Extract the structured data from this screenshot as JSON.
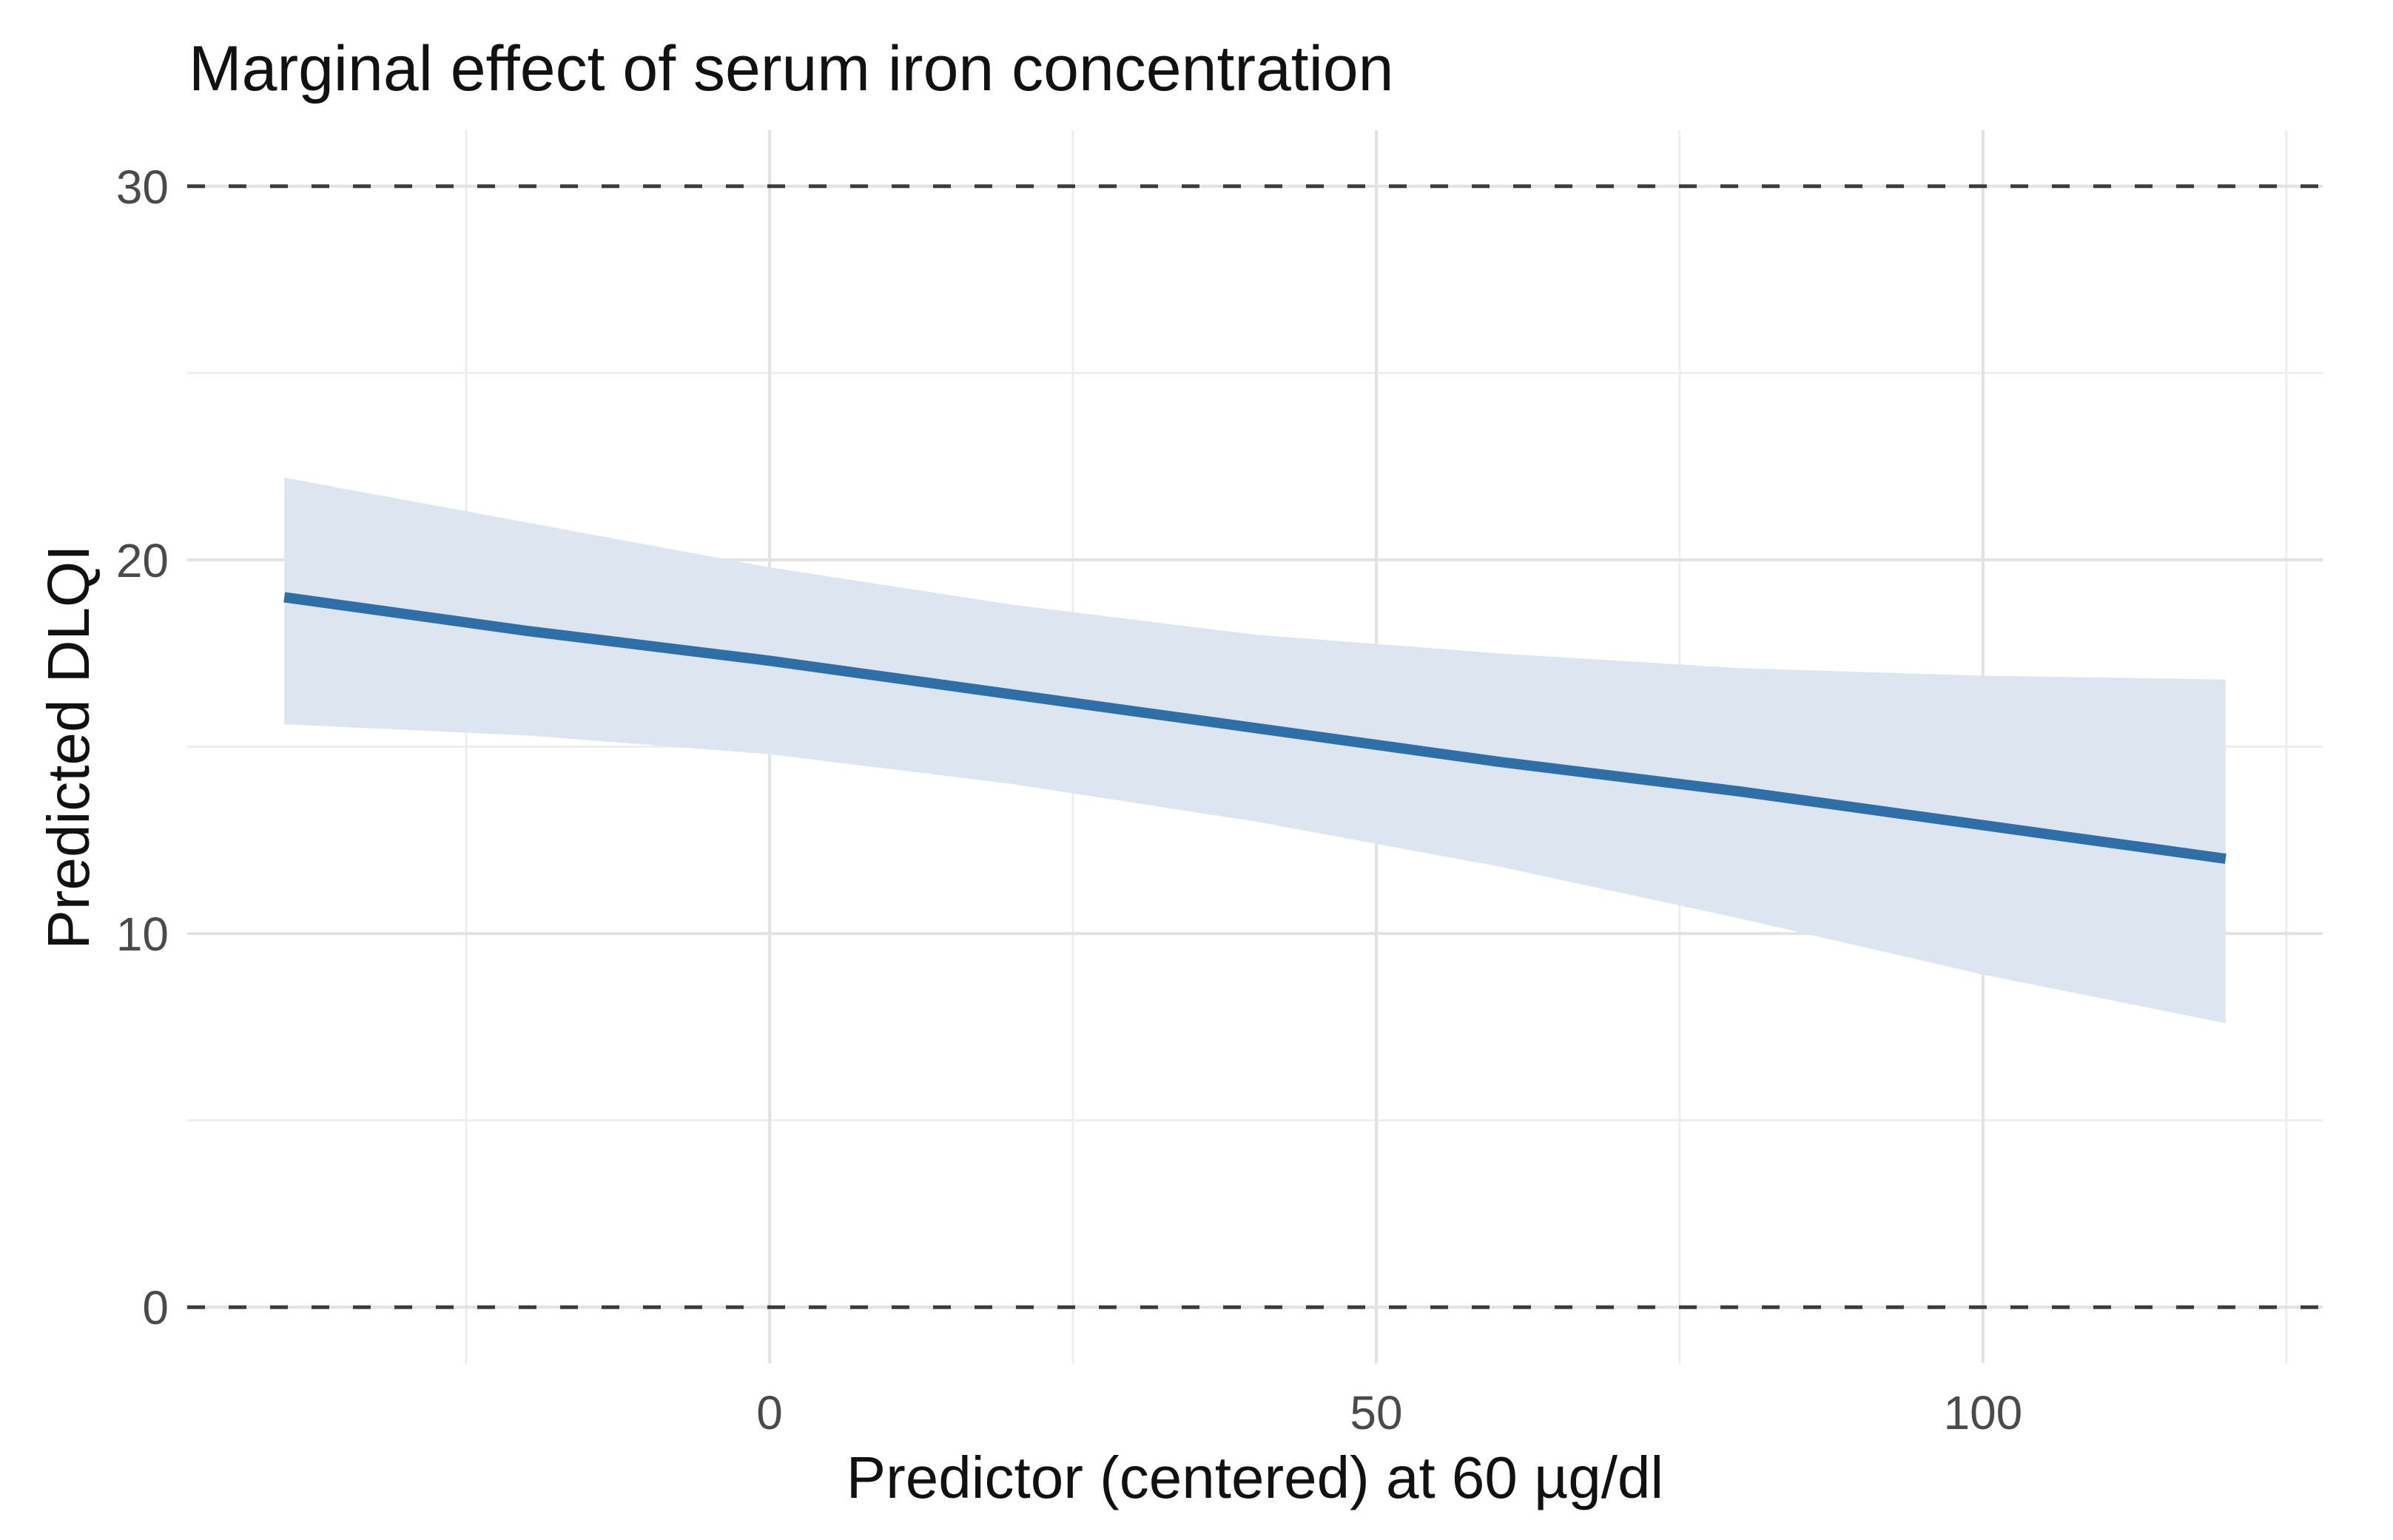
{
  "chart_data": {
    "type": "line",
    "title": "Marginal effect of serum iron concentration",
    "xlabel": "Predictor (centered) at 60 µg/dl",
    "ylabel": "Predicted DLQI",
    "xlim": [
      -48,
      128
    ],
    "ylim": [
      -1.5,
      31.5
    ],
    "x_ticks": [
      0,
      50,
      100
    ],
    "x_minor_ticks": [
      -25,
      25,
      75,
      125
    ],
    "y_ticks": [
      0,
      10,
      20,
      30
    ],
    "y_minor_ticks": [
      5,
      15,
      25
    ],
    "reference_lines_y": [
      0,
      30
    ],
    "grid": "major+minor",
    "legend": "none",
    "series": [
      {
        "name": "predicted-dlqi-marginal-effect",
        "x": [
          -40,
          -20,
          0,
          20,
          40,
          60,
          80,
          100,
          120
        ],
        "y": [
          19.0,
          18.1,
          17.3,
          16.4,
          15.5,
          14.6,
          13.8,
          12.9,
          12.0
        ],
        "ci_upper": [
          22.2,
          21.0,
          19.8,
          18.8,
          18.0,
          17.5,
          17.1,
          16.9,
          16.8
        ],
        "ci_lower": [
          15.6,
          15.3,
          14.8,
          14.0,
          13.0,
          11.8,
          10.4,
          8.9,
          7.6
        ]
      }
    ],
    "colors": {
      "line": "#2e6fa8",
      "ribbon": "#dde6f0",
      "reference_line": "#3c3c3c",
      "grid_major": "#e2e2e2",
      "grid_minor": "#eeeeee",
      "title": "#111111",
      "axis_title": "#111111",
      "tick_label": "#4a4a4a",
      "background": "#ffffff"
    }
  }
}
